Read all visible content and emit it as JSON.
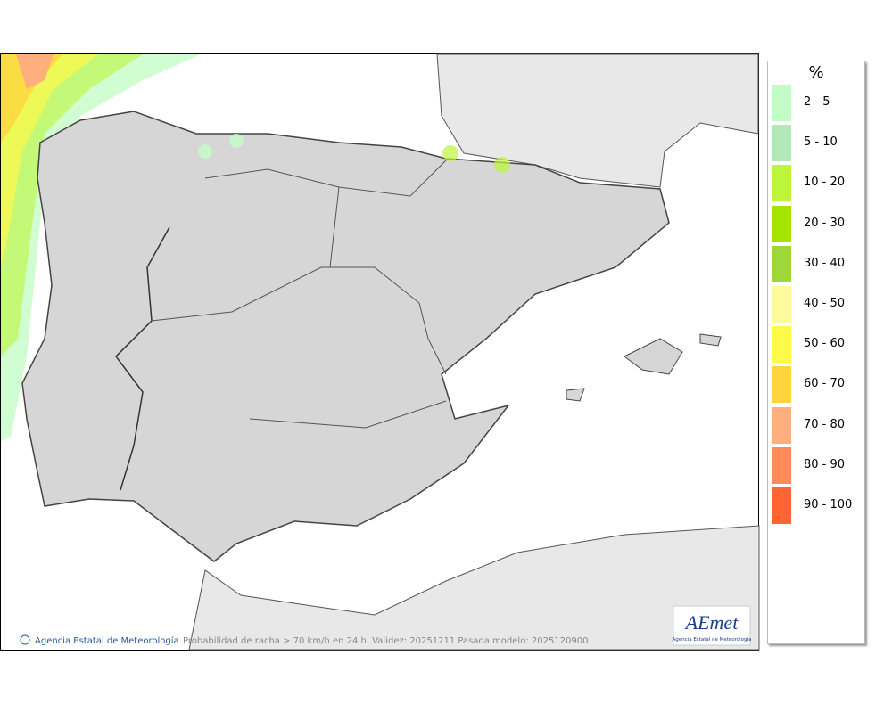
{
  "legend": {
    "title": "%",
    "items": [
      {
        "label": "2 - 5",
        "color": "#c4fcc6"
      },
      {
        "label": "5 - 10",
        "color": "#b2e9b6"
      },
      {
        "label": "10 - 20",
        "color": "#bdf53a"
      },
      {
        "label": "20 - 30",
        "color": "#a5e400"
      },
      {
        "label": "30 - 40",
        "color": "#9fd63a"
      },
      {
        "label": "40 - 50",
        "color": "#fffb9d"
      },
      {
        "label": "50 - 60",
        "color": "#fff94a"
      },
      {
        "label": "60 - 70",
        "color": "#ffd43f"
      },
      {
        "label": "70 - 80",
        "color": "#ffae7e"
      },
      {
        "label": "80 - 90",
        "color": "#ff8c58"
      },
      {
        "label": "90 - 100",
        "color": "#ff6433"
      }
    ]
  },
  "footer": {
    "credit": "Agencia Estatal de Meteorología",
    "caption": "Probabilidad de racha > 70 km/h en 24 h. Validez: 20251211 Pasada modelo: 2025120900"
  },
  "logo": {
    "name": "AEmet",
    "subtitle": "Agencia Estatal de Meteorología"
  }
}
